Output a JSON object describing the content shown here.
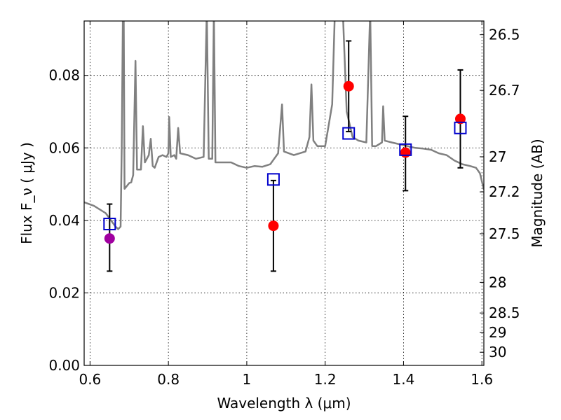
{
  "chart_data": {
    "type": "scatter",
    "xlabel": "Wavelength  λ (μm)",
    "ylabel": "Flux  F_ν  ( μJy )",
    "y2label": "Magnitude (AB)",
    "xlim": [
      0.585,
      1.605
    ],
    "ylim": [
      0.0,
      0.095
    ],
    "x_ticks": [
      0.6,
      0.8,
      1.0,
      1.2,
      1.4,
      1.6
    ],
    "x_tick_labels": [
      "0.6",
      "0.8",
      "1",
      "1.2",
      "1.4",
      "1.6"
    ],
    "y_ticks": [
      0.0,
      0.02,
      0.04,
      0.06,
      0.08
    ],
    "y_tick_labels": [
      "0.00",
      "0.02",
      "0.04",
      "0.06",
      "0.08"
    ],
    "mag_ticks": [
      26.5,
      26.7,
      27.0,
      27.2,
      27.5,
      28.0,
      28.5,
      29.0,
      30.0
    ],
    "mag_tick_labels": [
      "26.5",
      "26.7",
      "27",
      "27.2",
      "27.5",
      "28",
      "28.5",
      "29",
      "30"
    ],
    "grid": true,
    "colors": {
      "model_line": "#808080",
      "observed": "#ff0000",
      "observed_first": "#a000a0",
      "model_points": "#0000cc",
      "errorbar": "#000000"
    },
    "observed": [
      {
        "x": 0.65,
        "y": 0.035,
        "err_low": 0.009,
        "err_high": 0.0095,
        "color": "#a000a0"
      },
      {
        "x": 1.068,
        "y": 0.0385,
        "err_low": 0.0125,
        "err_high": 0.0125,
        "color": "#ff0000"
      },
      {
        "x": 1.26,
        "y": 0.077,
        "err_low": 0.0125,
        "err_high": 0.0125,
        "color": "#ff0000"
      },
      {
        "x": 1.405,
        "y": 0.0587,
        "err_low": 0.0105,
        "err_high": 0.01,
        "color": "#ff0000"
      },
      {
        "x": 1.545,
        "y": 0.068,
        "err_low": 0.0135,
        "err_high": 0.0135,
        "color": "#ff0000"
      }
    ],
    "model_points": [
      {
        "x": 0.65,
        "y": 0.039
      },
      {
        "x": 1.068,
        "y": 0.0513
      },
      {
        "x": 1.26,
        "y": 0.064
      },
      {
        "x": 1.405,
        "y": 0.0595
      },
      {
        "x": 1.545,
        "y": 0.0655
      }
    ],
    "model_spectrum": [
      [
        0.585,
        0.045
      ],
      [
        0.61,
        0.044
      ],
      [
        0.64,
        0.042
      ],
      [
        0.665,
        0.0383
      ],
      [
        0.672,
        0.0376
      ],
      [
        0.678,
        0.0383
      ],
      [
        0.681,
        0.06
      ],
      [
        0.684,
        0.098
      ],
      [
        0.686,
        0.098
      ],
      [
        0.688,
        0.0487
      ],
      [
        0.7,
        0.0503
      ],
      [
        0.705,
        0.0505
      ],
      [
        0.71,
        0.0525
      ],
      [
        0.716,
        0.084
      ],
      [
        0.72,
        0.054
      ],
      [
        0.73,
        0.054
      ],
      [
        0.735,
        0.066
      ],
      [
        0.74,
        0.056
      ],
      [
        0.75,
        0.058
      ],
      [
        0.755,
        0.0625
      ],
      [
        0.76,
        0.055
      ],
      [
        0.765,
        0.0545
      ],
      [
        0.775,
        0.0575
      ],
      [
        0.785,
        0.058
      ],
      [
        0.795,
        0.0575
      ],
      [
        0.8,
        0.0585
      ],
      [
        0.802,
        0.0685
      ],
      [
        0.806,
        0.0575
      ],
      [
        0.815,
        0.058
      ],
      [
        0.82,
        0.057
      ],
      [
        0.825,
        0.0655
      ],
      [
        0.83,
        0.0585
      ],
      [
        0.85,
        0.058
      ],
      [
        0.87,
        0.057
      ],
      [
        0.89,
        0.0575
      ],
      [
        0.898,
        0.098
      ],
      [
        0.903,
        0.057
      ],
      [
        0.912,
        0.057
      ],
      [
        0.916,
        0.098
      ],
      [
        0.92,
        0.056
      ],
      [
        0.94,
        0.056
      ],
      [
        0.96,
        0.056
      ],
      [
        0.98,
        0.055
      ],
      [
        1.0,
        0.0545
      ],
      [
        1.02,
        0.055
      ],
      [
        1.04,
        0.0548
      ],
      [
        1.06,
        0.0555
      ],
      [
        1.07,
        0.057
      ],
      [
        1.08,
        0.0585
      ],
      [
        1.09,
        0.072
      ],
      [
        1.095,
        0.059
      ],
      [
        1.12,
        0.058
      ],
      [
        1.15,
        0.059
      ],
      [
        1.16,
        0.063
      ],
      [
        1.165,
        0.0775
      ],
      [
        1.17,
        0.062
      ],
      [
        1.18,
        0.0605
      ],
      [
        1.2,
        0.0605
      ],
      [
        1.218,
        0.072
      ],
      [
        1.225,
        0.098
      ],
      [
        1.23,
        0.098
      ],
      [
        1.235,
        0.098
      ],
      [
        1.245,
        0.098
      ],
      [
        1.255,
        0.07
      ],
      [
        1.27,
        0.063
      ],
      [
        1.285,
        0.062
      ],
      [
        1.305,
        0.0615
      ],
      [
        1.315,
        0.098
      ],
      [
        1.32,
        0.0605
      ],
      [
        1.33,
        0.0605
      ],
      [
        1.345,
        0.0615
      ],
      [
        1.348,
        0.0715
      ],
      [
        1.352,
        0.062
      ],
      [
        1.37,
        0.0615
      ],
      [
        1.39,
        0.061
      ],
      [
        1.41,
        0.0605
      ],
      [
        1.43,
        0.06
      ],
      [
        1.45,
        0.0598
      ],
      [
        1.47,
        0.0595
      ],
      [
        1.49,
        0.0585
      ],
      [
        1.51,
        0.058
      ],
      [
        1.53,
        0.0565
      ],
      [
        1.55,
        0.0555
      ],
      [
        1.57,
        0.055
      ],
      [
        1.585,
        0.0545
      ],
      [
        1.595,
        0.053
      ],
      [
        1.605,
        0.0485
      ]
    ]
  }
}
